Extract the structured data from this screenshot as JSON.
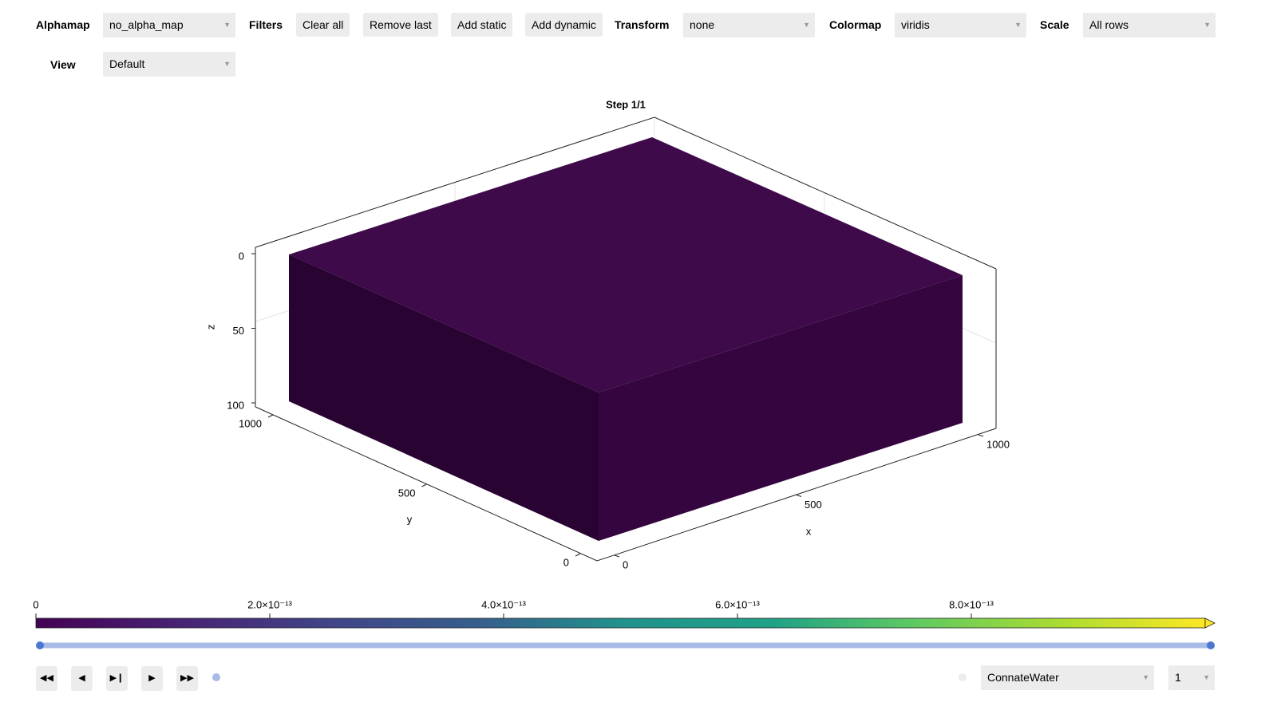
{
  "toolbar": {
    "alphamap": {
      "label": "Alphamap",
      "value": "no_alpha_map"
    },
    "filters": {
      "label": "Filters",
      "buttons": [
        "Clear all",
        "Remove last",
        "Add static",
        "Add dynamic"
      ]
    },
    "transform": {
      "label": "Transform",
      "value": "none"
    },
    "colormap": {
      "label": "Colormap",
      "value": "viridis"
    },
    "scale": {
      "label": "Scale",
      "value": "All rows"
    },
    "view": {
      "label": "View",
      "value": "Default"
    }
  },
  "plot": {
    "title": "Step 1/1",
    "x_label": "x",
    "y_label": "y",
    "z_label": "z",
    "x_ticks": [
      0,
      500,
      1000
    ],
    "y_ticks": [
      0,
      500,
      1000
    ],
    "z_ticks": [
      0,
      50,
      100
    ]
  },
  "colorbar": {
    "lim": [
      0,
      1e-12
    ],
    "ticks": [
      0,
      {
        "value": 2e-13,
        "label": "2.0×10⁻¹³"
      },
      {
        "value": 4e-13,
        "label": "4.0×10⁻¹³"
      },
      {
        "value": 6e-13,
        "label": "6.0×10⁻¹³"
      },
      {
        "value": 8e-13,
        "label": "8.0×10⁻¹³"
      }
    ]
  },
  "playback": {
    "variable": "ConnateWater",
    "step": 1
  }
}
